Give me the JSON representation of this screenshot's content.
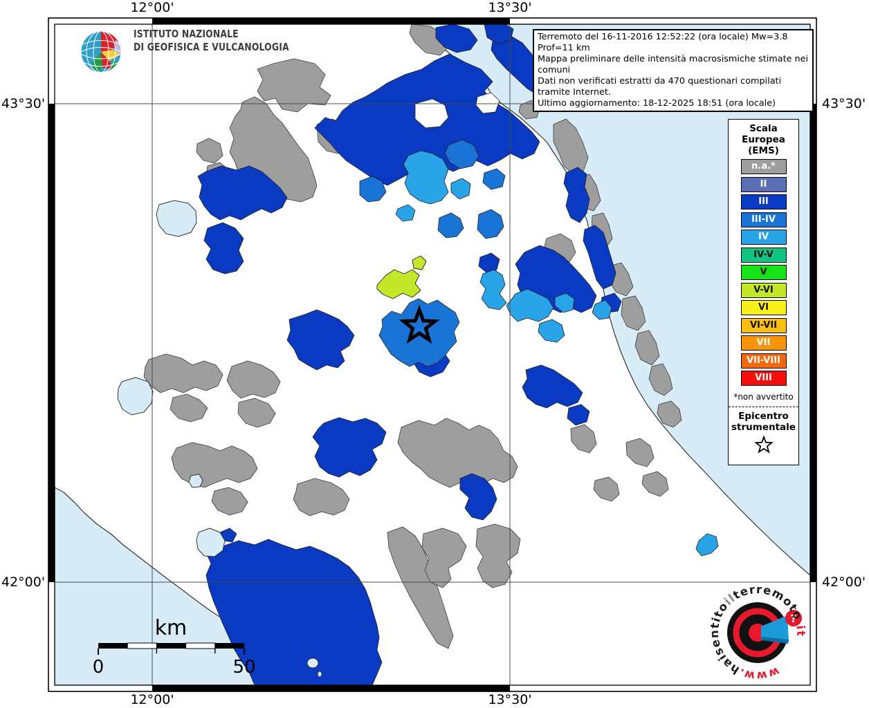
{
  "frame": {
    "lon_left": "12°00'",
    "lon_right": "13°30'",
    "lat_top": "43°30'",
    "lat_bottom": "42°00'"
  },
  "branding": {
    "institute_line1": "ISTITUTO NAZIONALE",
    "institute_line2": "DI GEOFISICA E VULCANOLOGIA"
  },
  "info_box": {
    "line1": "Terremoto del 16-11-2016 12:52:22 (ora locale) Mw=3.8 Prof=11 km",
    "line2": "Mappa preliminare delle intensità macrosismiche stimate nei comuni",
    "line3": "Dati non verificati estratti da 470 questionari compilati tramite Internet.",
    "line4": "Ultimo aggiornamento: 18-12-2025 18:51 (ora locale)"
  },
  "legend": {
    "title_lines": [
      "Scala",
      "Europea",
      "(EMS)"
    ],
    "items": [
      {
        "label": "n.a.*",
        "color": "#9e9e9e",
        "text_color": "#ffffff"
      },
      {
        "label": "II",
        "color": "#5a6fb5",
        "text_color": "#ffffff"
      },
      {
        "label": "III",
        "color": "#0a3ac2",
        "text_color": "#ffffff"
      },
      {
        "label": "III-IV",
        "color": "#1a74d6",
        "text_color": "#ffffff"
      },
      {
        "label": "IV",
        "color": "#29a4e8",
        "text_color": "#ffffff"
      },
      {
        "label": "IV-V",
        "color": "#10c581",
        "text_color": "#111111"
      },
      {
        "label": "V",
        "color": "#17e217",
        "text_color": "#111111"
      },
      {
        "label": "V-VI",
        "color": "#c3e829",
        "text_color": "#111111"
      },
      {
        "label": "VI",
        "color": "#f8ef19",
        "text_color": "#111111"
      },
      {
        "label": "VI-VII",
        "color": "#f8bd0f",
        "text_color": "#111111"
      },
      {
        "label": "VII",
        "color": "#f9950a",
        "text_color": "#ffffff"
      },
      {
        "label": "VII-VIII",
        "color": "#f3680d",
        "text_color": "#ffffff"
      },
      {
        "label": "VIII",
        "color": "#f50f0f",
        "text_color": "#ffffff"
      }
    ],
    "footnote": "*non avvertito",
    "epicenter_lines": [
      "Epicentro",
      "strumentale"
    ]
  },
  "scalebar": {
    "unit": "km",
    "start_label": "0",
    "end_label": "50"
  },
  "watermark": {
    "segments": [
      {
        "text": "www.",
        "color": "#e8192c"
      },
      {
        "text": "haisentito",
        "color": "#1a1a1a"
      },
      {
        "text": "il",
        "color": "#8a8a8a"
      },
      {
        "text": "terremoto",
        "color": "#1a1a1a"
      },
      {
        "text": ".it",
        "color": "#e8192c"
      }
    ]
  },
  "colors": {
    "sea": "#d8ecf8",
    "land": "#ffffff",
    "na": "#9e9e9e",
    "ii": "#5a6fb5",
    "iii": "#0a3ac2",
    "iii_iv": "#1a74d6",
    "iv": "#29a4e8",
    "iv_v": "#10c581",
    "v": "#17e217",
    "v_vi": "#c3e829",
    "vi": "#f8ef19",
    "vi_vii": "#f8bd0f",
    "vii": "#f9950a",
    "vii_viii": "#f3680d",
    "viii": "#f50f0f"
  }
}
